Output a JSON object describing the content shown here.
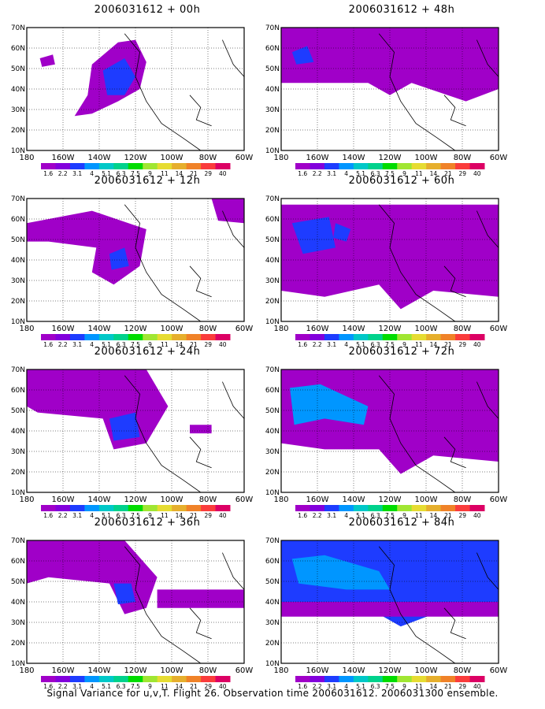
{
  "panels": [
    {
      "title": "2006031612 + 00h"
    },
    {
      "title": "2006031612 + 48h"
    },
    {
      "title": "2006031612 + 12h"
    },
    {
      "title": "2006031612 + 60h"
    },
    {
      "title": "2006031612 + 24h"
    },
    {
      "title": "2006031612 + 72h"
    },
    {
      "title": "2006031612 + 36h"
    },
    {
      "title": "2006031612 + 84h"
    }
  ],
  "lat_labels": [
    "70N",
    "60N",
    "50N",
    "40N",
    "30N",
    "20N",
    "10N"
  ],
  "lon_labels": [
    "180",
    "160W",
    "140W",
    "120W",
    "100W",
    "80W",
    "60W"
  ],
  "colorbar": {
    "labels": [
      "1.6",
      "2.2",
      "3.1",
      "4",
      "5.1",
      "6.3",
      "7.5",
      "9",
      "11",
      "14",
      "21",
      "29",
      "40"
    ],
    "colors": [
      "#a000c8",
      "#8200dc",
      "#1e3cff",
      "#0096ff",
      "#00c8c8",
      "#00d28c",
      "#00dc00",
      "#a0e632",
      "#e6dc32",
      "#e6af2d",
      "#f08228",
      "#fa3c3c",
      "#dc0064"
    ]
  },
  "footer": "Signal Variance for u,v,T. Flight 26. Observation time 2006031612. 2006031300 ensemble."
}
